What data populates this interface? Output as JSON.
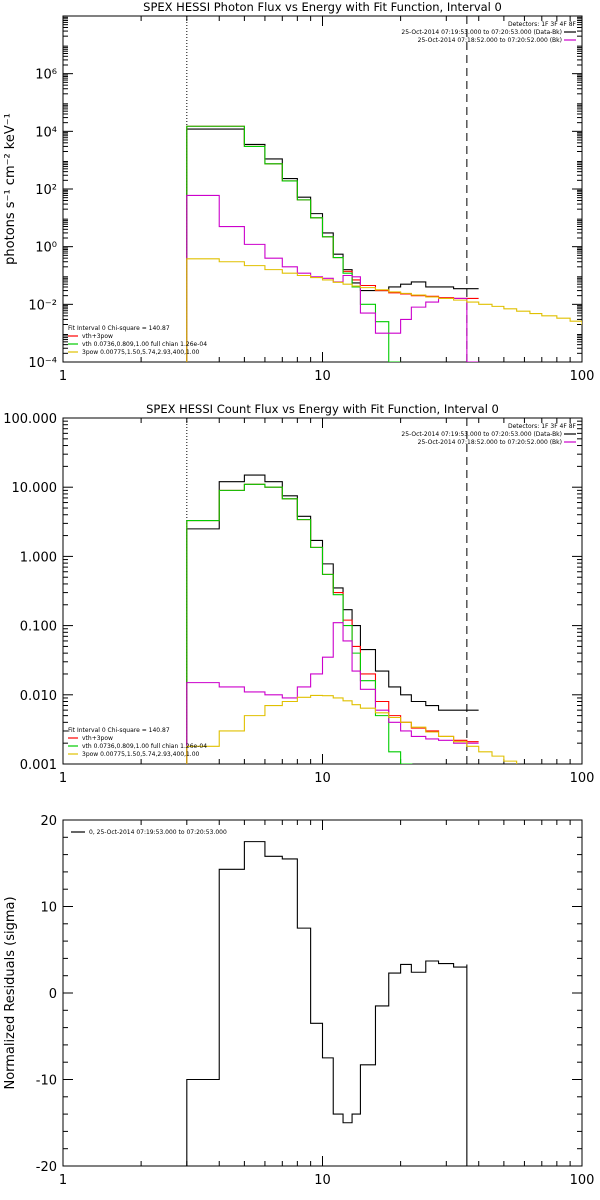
{
  "chart_data": [
    {
      "type": "line",
      "title": "SPEX HESSI Photon Flux vs Energy with Fit Function, Interval 0",
      "xlabel": "",
      "ylabel": "photons s⁻¹ cm⁻² keV⁻¹",
      "xscale": "log",
      "yscale": "log",
      "xlim": [
        1,
        100
      ],
      "ylim": [
        0.0001,
        100000000
      ],
      "x_ticks": [
        "1",
        "10",
        "100"
      ],
      "y_ticks": [
        "10⁻⁴",
        "10⁻²",
        "10⁰",
        "10²",
        "10⁴",
        "10⁶"
      ],
      "y_tick_values": [
        0.0001,
        0.01,
        1,
        100,
        10000,
        1000000
      ],
      "vlines": [
        {
          "x": 3.0,
          "style": "dotted"
        },
        {
          "x": 36.0,
          "style": "dashed"
        }
      ],
      "legend_topright": [
        "Detectors: 1F 3F 4F 8F",
        "25-Oct-2014 07:19:53.000 to 07:20:53.000 (Data-Bk)",
        "25-Oct-2014 07:18:52.000 to 07:20:52.000 (Bk)"
      ],
      "legend_topright_colors": [
        "",
        "#000000",
        "#cc00cc"
      ],
      "legend_bottomleft": [
        "Fit Interval 0   Chi-square = 140.87",
        "vth+3pow",
        "vth 0.0736,0.809,1.00  full chian 1.26e-04",
        "3pow 0.00775,1.50,5.74,2.93,400,1.00"
      ],
      "legend_bottomleft_colors": [
        "",
        "#ff0000",
        "#00cc00",
        "#e0c000"
      ],
      "series": [
        {
          "color": "#000000",
          "x": [
            3,
            4,
            5,
            6,
            7,
            8,
            9,
            10,
            11,
            12,
            13,
            14,
            16,
            18,
            20,
            22,
            25,
            28,
            32,
            36
          ],
          "values": [
            12000,
            12000,
            3500,
            1100,
            230,
            52,
            14,
            3,
            0.55,
            0.16,
            0.055,
            0.03,
            0.03,
            0.04,
            0.05,
            0.06,
            0.04,
            0.04,
            0.035,
            0.035
          ]
        },
        {
          "color": "#ff0000",
          "x": [
            3,
            4,
            5,
            6,
            7,
            8,
            9,
            10,
            11,
            12,
            13,
            14,
            16,
            18,
            20,
            22,
            25,
            28,
            32,
            36
          ],
          "values": [
            15000,
            15000,
            3000,
            750,
            190,
            42,
            10,
            2.2,
            0.42,
            0.14,
            0.07,
            0.045,
            0.03,
            0.025,
            0.023,
            0.02,
            0.019,
            0.017,
            0.016,
            0.016
          ]
        },
        {
          "color": "#00cc00",
          "x": [
            3,
            4,
            5,
            6,
            7,
            8,
            9,
            10,
            11,
            12,
            13,
            14,
            16,
            18
          ],
          "values": [
            15000,
            15000,
            3000,
            750,
            190,
            42,
            10,
            2.2,
            0.42,
            0.12,
            0.04,
            0.01,
            0.0025,
            0.0001
          ]
        },
        {
          "color": "#cc00cc",
          "x": [
            3,
            4,
            5,
            6,
            7,
            8,
            9,
            10,
            11,
            12,
            13,
            14,
            16,
            18,
            20,
            22,
            25,
            28,
            32,
            36
          ],
          "values": [
            60,
            5,
            1.2,
            0.4,
            0.2,
            0.12,
            0.09,
            0.08,
            0.06,
            0.1,
            0.09,
            0.005,
            0.001,
            0.001,
            0.003,
            0.008,
            0.012,
            0.016,
            0.016,
            0.0001
          ]
        },
        {
          "color": "#e0c000",
          "x": [
            3,
            4,
            5,
            6,
            7,
            8,
            9,
            10,
            11,
            12,
            13,
            14,
            16,
            18,
            20,
            22,
            25,
            28,
            32,
            36,
            40,
            45,
            50,
            56,
            63,
            70,
            80,
            90,
            100
          ],
          "values": [
            0.38,
            0.3,
            0.22,
            0.16,
            0.12,
            0.1,
            0.085,
            0.07,
            0.058,
            0.05,
            0.043,
            0.038,
            0.032,
            0.027,
            0.024,
            0.021,
            0.018,
            0.016,
            0.014,
            0.012,
            0.01,
            0.0085,
            0.007,
            0.0058,
            0.0048,
            0.004,
            0.0033,
            0.0026,
            0.002
          ]
        }
      ]
    },
    {
      "type": "line",
      "title": "SPEX HESSI Count Flux vs Energy with Fit Function, Interval 0",
      "xlabel": "",
      "ylabel": "",
      "xscale": "log",
      "yscale": "log",
      "xlim": [
        1,
        100
      ],
      "ylim": [
        0.001,
        100
      ],
      "x_ticks": [
        "1",
        "10",
        "100"
      ],
      "y_ticks": [
        "0.001",
        "0.010",
        "0.100",
        "1.000",
        "10.000",
        "100.000"
      ],
      "y_tick_values": [
        0.001,
        0.01,
        0.1,
        1,
        10,
        100
      ],
      "vlines": [
        {
          "x": 3.0,
          "style": "dotted"
        },
        {
          "x": 36.0,
          "style": "dashed"
        }
      ],
      "legend_topright": [
        "Detectors: 1F 3F 4F 8F",
        "25-Oct-2014 07:19:53.000 to 07:20:53.000 (Data-Bk)",
        "25-Oct-2014 07:18:52.000 to 07:20:52.000 (Bk)"
      ],
      "legend_topright_colors": [
        "",
        "#000000",
        "#cc00cc"
      ],
      "legend_bottomleft": [
        "Fit Interval 0   Chi-square = 140.87",
        "vth+3pow",
        "vth 0.0736,0.809,1.00  full chian 1.26e-04",
        "3pow 0.00775,1.50,5.74,2.93,400,1.00"
      ],
      "legend_bottomleft_colors": [
        "",
        "#ff0000",
        "#00cc00",
        "#e0c000"
      ],
      "series": [
        {
          "color": "#000000",
          "x": [
            3,
            4,
            5,
            6,
            7,
            8,
            9,
            10,
            11,
            12,
            13,
            14,
            16,
            18,
            20,
            22,
            25,
            28,
            32,
            36
          ],
          "values": [
            2.5,
            12,
            15,
            12,
            7.5,
            3.8,
            1.7,
            0.78,
            0.35,
            0.17,
            0.1,
            0.045,
            0.022,
            0.013,
            0.01,
            0.008,
            0.007,
            0.006,
            0.006,
            0.006
          ]
        },
        {
          "color": "#ff0000",
          "x": [
            3,
            4,
            5,
            6,
            7,
            8,
            9,
            10,
            11,
            12,
            13,
            14,
            16,
            18,
            20,
            22,
            25,
            28,
            32,
            36
          ],
          "values": [
            3.3,
            9,
            11,
            10,
            6.8,
            3.4,
            1.35,
            0.55,
            0.3,
            0.12,
            0.05,
            0.02,
            0.008,
            0.005,
            0.004,
            0.0033,
            0.003,
            0.0025,
            0.0022,
            0.0021
          ]
        },
        {
          "color": "#00cc00",
          "x": [
            3,
            4,
            5,
            6,
            7,
            8,
            9,
            10,
            11,
            12,
            13,
            14,
            16,
            18,
            20
          ],
          "values": [
            3.3,
            9,
            11,
            10,
            6.8,
            3.4,
            1.35,
            0.55,
            0.28,
            0.1,
            0.04,
            0.016,
            0.005,
            0.0015,
            0.001
          ]
        },
        {
          "color": "#cc00cc",
          "x": [
            3,
            4,
            5,
            6,
            7,
            8,
            9,
            10,
            11,
            12,
            13,
            14,
            16,
            18,
            20,
            22,
            25,
            28,
            32,
            36
          ],
          "values": [
            0.015,
            0.013,
            0.011,
            0.01,
            0.009,
            0.013,
            0.02,
            0.035,
            0.11,
            0.06,
            0.022,
            0.012,
            0.006,
            0.004,
            0.003,
            0.0025,
            0.0023,
            0.0022,
            0.002,
            0.002
          ]
        },
        {
          "color": "#e0c000",
          "x": [
            3,
            4,
            5,
            6,
            7,
            8,
            9,
            10,
            11,
            12,
            13,
            14,
            16,
            18,
            20,
            22,
            25,
            28,
            32,
            36,
            40,
            45,
            50,
            56,
            63,
            70,
            80
          ],
          "values": [
            0.0018,
            0.003,
            0.005,
            0.007,
            0.008,
            0.0092,
            0.0098,
            0.0097,
            0.009,
            0.0082,
            0.0072,
            0.0064,
            0.0055,
            0.0047,
            0.004,
            0.0034,
            0.0029,
            0.0025,
            0.0021,
            0.0018,
            0.0015,
            0.0013,
            0.0011,
            0.00095,
            0.00085,
            0.00075,
            0.0007
          ]
        }
      ]
    },
    {
      "type": "line",
      "title": "",
      "xlabel": "",
      "ylabel": "Normalized Residuals (sigma)",
      "xscale": "log",
      "yscale": "linear",
      "xlim": [
        1,
        100
      ],
      "ylim": [
        -20,
        20
      ],
      "x_ticks": [
        "1",
        "10",
        "100"
      ],
      "y_ticks": [
        "-20",
        "-10",
        "0",
        "10",
        "20"
      ],
      "y_tick_values": [
        -20,
        -10,
        0,
        10,
        20
      ],
      "vlines": [],
      "legend_topleft": [
        "0, 25-Oct-2014 07:19:53.000 to 07:20:53.000"
      ],
      "legend_topleft_colors": [
        "#000000"
      ],
      "series": [
        {
          "color": "#000000",
          "x": [
            3,
            3,
            4,
            5,
            6,
            7,
            8,
            9,
            10,
            11,
            12,
            13,
            14,
            16,
            18,
            20,
            22,
            25,
            28,
            32,
            36,
            36
          ],
          "values": [
            -21,
            -10,
            14.3,
            17.5,
            15.8,
            15.5,
            7.5,
            -3.5,
            -7.5,
            -14,
            -15,
            -14,
            -8.3,
            -1.5,
            2.3,
            3.3,
            2.4,
            3.7,
            3.4,
            3,
            3.3,
            -21
          ]
        }
      ]
    }
  ]
}
